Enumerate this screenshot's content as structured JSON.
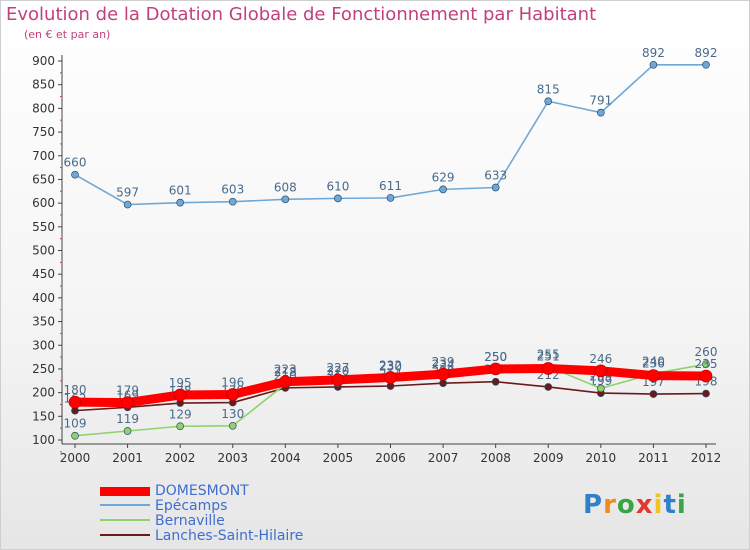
{
  "chart_data": {
    "type": "line",
    "title": "Evolution de la Dotation Globale de Fonctionnement par Habitant",
    "subtitle": "(en € et par an)",
    "x": [
      "2000",
      "2001",
      "2002",
      "2003",
      "2004",
      "2005",
      "2006",
      "2007",
      "2008",
      "2009",
      "2010",
      "2011",
      "2012"
    ],
    "ylim": [
      100,
      900
    ],
    "yticks": [
      100,
      150,
      200,
      250,
      300,
      350,
      400,
      450,
      500,
      550,
      600,
      650,
      700,
      750,
      800,
      850,
      900
    ],
    "grid": false,
    "legend_position": "bottom-left",
    "series": [
      {
        "name": "Lanches-Saint-Hilaire",
        "color": "#6b1a1a",
        "values": [
          162,
          169,
          178,
          179,
          210,
          212,
          214,
          220,
          223,
          212,
          199,
          197,
          198
        ]
      },
      {
        "name": "Bernaville",
        "color": "#8fd16a",
        "values": [
          109,
          119,
          129,
          130,
          218,
          220,
          230,
          234,
          250,
          255,
          209,
          240,
          260
        ]
      },
      {
        "name": "Epécamps",
        "color": "#6fa8d6",
        "values": [
          660,
          597,
          601,
          603,
          608,
          610,
          611,
          629,
          633,
          815,
          791,
          892,
          892
        ]
      },
      {
        "name": "DOMESMONT",
        "color": "#ff0000",
        "values": [
          180,
          179,
          195,
          196,
          223,
          227,
          232,
          239,
          250,
          251,
          246,
          236,
          235
        ]
      }
    ]
  },
  "legend": {
    "items": [
      "DOMESMONT",
      "Epécamps",
      "Bernaville",
      "Lanches-Saint-Hilaire"
    ]
  },
  "logo": {
    "letters": [
      "P",
      "r",
      "o",
      "x",
      "i",
      "t",
      "i"
    ]
  }
}
